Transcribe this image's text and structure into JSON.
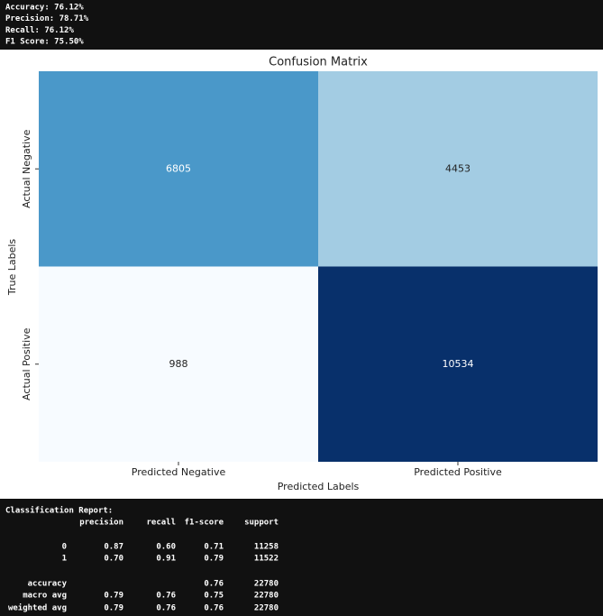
{
  "metrics": [
    "Accuracy: 76.12%",
    "Precision: 78.71%",
    "Recall: 76.12%",
    "F1 Score: 75.50%"
  ],
  "chart_data": {
    "type": "heatmap",
    "title": "Confusion Matrix",
    "xlabel": "Predicted Labels",
    "ylabel": "True Labels",
    "x_categories": [
      "Predicted Negative",
      "Predicted Positive"
    ],
    "y_categories": [
      "Actual Negative",
      "Actual Positive"
    ],
    "values": [
      [
        6805,
        4453
      ],
      [
        988,
        10534
      ]
    ],
    "colors": [
      [
        "#4a98c9",
        "#a3cce3"
      ],
      [
        "#f7fbff",
        "#08306b"
      ]
    ]
  },
  "report": {
    "title": "Classification Report:",
    "columns": [
      "precision",
      "recall",
      "f1-score",
      "support"
    ],
    "rows": [
      {
        "label": "0",
        "cells": [
          "0.87",
          "0.60",
          "0.71",
          "11258"
        ]
      },
      {
        "label": "1",
        "cells": [
          "0.70",
          "0.91",
          "0.79",
          "11522"
        ]
      },
      {
        "label": "accuracy",
        "cells": [
          null,
          null,
          "0.76",
          "22780"
        ]
      },
      {
        "label": "macro avg",
        "cells": [
          "0.79",
          "0.76",
          "0.75",
          "22780"
        ]
      },
      {
        "label": "weighted avg",
        "cells": [
          "0.79",
          "0.76",
          "0.76",
          "22780"
        ]
      }
    ]
  }
}
